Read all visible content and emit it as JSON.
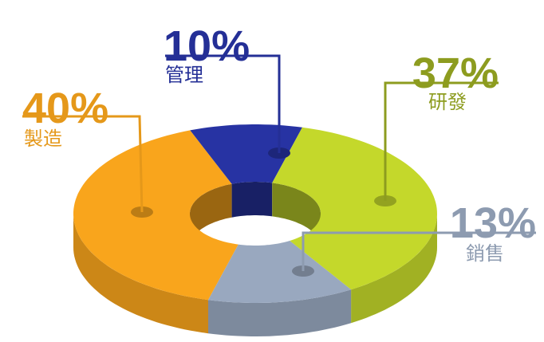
{
  "chart_data": {
    "type": "pie",
    "donut": true,
    "categories": [
      "製造",
      "管理",
      "研發",
      "銷售"
    ],
    "values": [
      40,
      10,
      37,
      13
    ],
    "value_labels": [
      "40%",
      "10%",
      "37%",
      "13%"
    ],
    "colors": [
      "#f9a51c",
      "#2733a3",
      "#c4d82b",
      "#99a8bf"
    ]
  }
}
